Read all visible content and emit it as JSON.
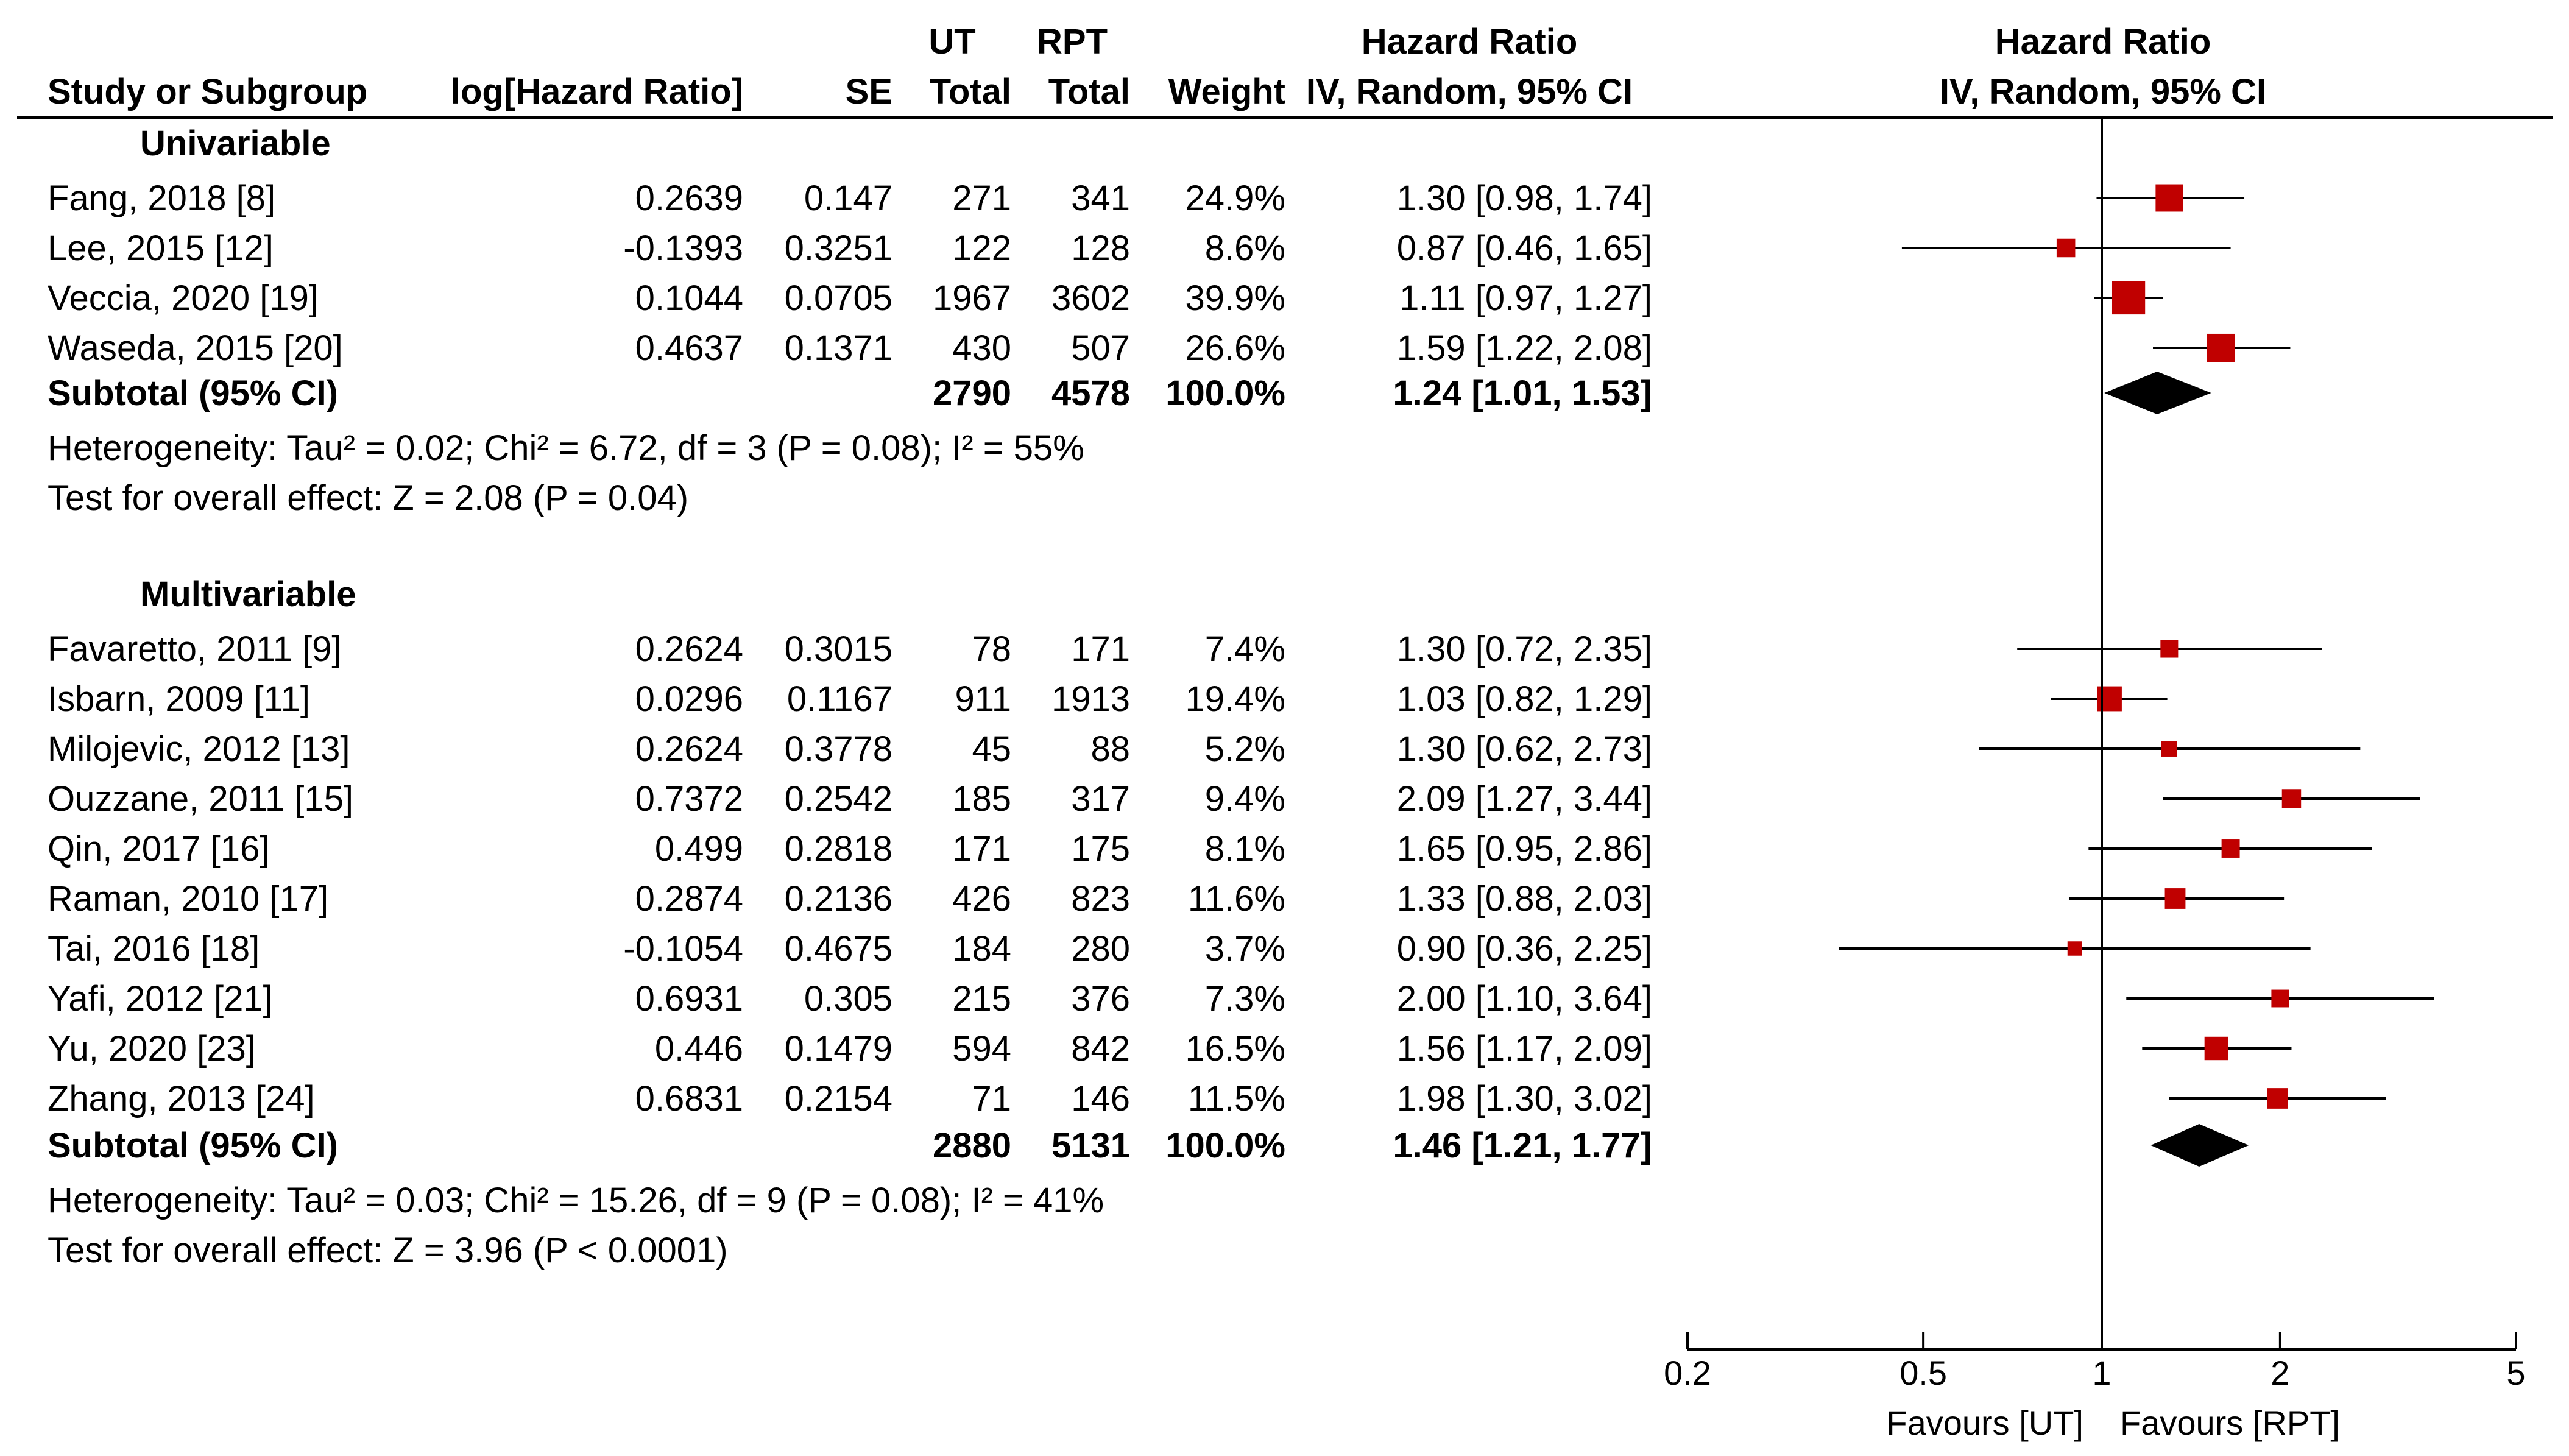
{
  "header": {
    "study": "Study or Subgroup",
    "loghr": "log[Hazard Ratio]",
    "se": "SE",
    "ut_top": "UT",
    "ut_bottom": "Total",
    "rpt_top": "RPT",
    "rpt_bottom": "Total",
    "weight": "Weight",
    "hr_top": "Hazard Ratio",
    "hr_bottom": "IV, Random, 95% CI",
    "plot_top": "Hazard Ratio",
    "plot_bottom": "IV, Random, 95% CI"
  },
  "groups": [
    {
      "label": "Univariable",
      "studies": [
        {
          "name": "Fang, 2018 [8]",
          "loghr": "0.2639",
          "se": "0.147",
          "ut": "271",
          "rpt": "341",
          "weight": "24.9%",
          "ci_text": "1.30 [0.98, 1.74]"
        },
        {
          "name": "Lee, 2015 [12]",
          "loghr": "-0.1393",
          "se": "0.3251",
          "ut": "122",
          "rpt": "128",
          "weight": "8.6%",
          "ci_text": "0.87 [0.46, 1.65]"
        },
        {
          "name": "Veccia, 2020 [19]",
          "loghr": "0.1044",
          "se": "0.0705",
          "ut": "1967",
          "rpt": "3602",
          "weight": "39.9%",
          "ci_text": "1.11 [0.97, 1.27]"
        },
        {
          "name": "Waseda, 2015 [20]",
          "loghr": "0.4637",
          "se": "0.1371",
          "ut": "430",
          "rpt": "507",
          "weight": "26.6%",
          "ci_text": "1.59 [1.22, 2.08]"
        }
      ],
      "subtotal": {
        "label": "Subtotal (95% CI)",
        "ut": "2790",
        "rpt": "4578",
        "weight": "100.0%",
        "ci_text": "1.24 [1.01, 1.53]"
      },
      "heterogeneity": "Heterogeneity: Tau² = 0.02; Chi² = 6.72, df = 3 (P = 0.08); I² = 55%",
      "overall": "Test for overall effect: Z = 2.08 (P = 0.04)"
    },
    {
      "label": "Multivariable",
      "studies": [
        {
          "name": "Favaretto, 2011 [9]",
          "loghr": "0.2624",
          "se": "0.3015",
          "ut": "78",
          "rpt": "171",
          "weight": "7.4%",
          "ci_text": "1.30 [0.72, 2.35]"
        },
        {
          "name": "Isbarn, 2009 [11]",
          "loghr": "0.0296",
          "se": "0.1167",
          "ut": "911",
          "rpt": "1913",
          "weight": "19.4%",
          "ci_text": "1.03 [0.82, 1.29]"
        },
        {
          "name": "Milojevic, 2012 [13]",
          "loghr": "0.2624",
          "se": "0.3778",
          "ut": "45",
          "rpt": "88",
          "weight": "5.2%",
          "ci_text": "1.30 [0.62, 2.73]"
        },
        {
          "name": "Ouzzane, 2011 [15]",
          "loghr": "0.7372",
          "se": "0.2542",
          "ut": "185",
          "rpt": "317",
          "weight": "9.4%",
          "ci_text": "2.09 [1.27, 3.44]"
        },
        {
          "name": "Qin, 2017 [16]",
          "loghr": "0.499",
          "se": "0.2818",
          "ut": "171",
          "rpt": "175",
          "weight": "8.1%",
          "ci_text": "1.65 [0.95, 2.86]"
        },
        {
          "name": "Raman, 2010 [17]",
          "loghr": "0.2874",
          "se": "0.2136",
          "ut": "426",
          "rpt": "823",
          "weight": "11.6%",
          "ci_text": "1.33 [0.88, 2.03]"
        },
        {
          "name": "Tai, 2016 [18]",
          "loghr": "-0.1054",
          "se": "0.4675",
          "ut": "184",
          "rpt": "280",
          "weight": "3.7%",
          "ci_text": "0.90 [0.36, 2.25]"
        },
        {
          "name": "Yafi, 2012 [21]",
          "loghr": "0.6931",
          "se": "0.305",
          "ut": "215",
          "rpt": "376",
          "weight": "7.3%",
          "ci_text": "2.00 [1.10, 3.64]"
        },
        {
          "name": "Yu, 2020 [23]",
          "loghr": "0.446",
          "se": "0.1479",
          "ut": "594",
          "rpt": "842",
          "weight": "16.5%",
          "ci_text": "1.56 [1.17, 2.09]"
        },
        {
          "name": "Zhang, 2013 [24]",
          "loghr": "0.6831",
          "se": "0.2154",
          "ut": "71",
          "rpt": "146",
          "weight": "11.5%",
          "ci_text": "1.98 [1.30, 3.02]"
        }
      ],
      "subtotal": {
        "label": "Subtotal (95% CI)",
        "ut": "2880",
        "rpt": "5131",
        "weight": "100.0%",
        "ci_text": "1.46 [1.21, 1.77]"
      },
      "heterogeneity": "Heterogeneity: Tau² = 0.03; Chi² = 15.26, df = 9 (P = 0.08); I² = 41%",
      "overall": "Test for overall effect: Z = 3.96 (P < 0.0001)"
    }
  ],
  "axis": {
    "ticks": [
      0.2,
      0.5,
      1,
      2,
      5
    ],
    "tick_labels": [
      "0.2",
      "0.5",
      "1",
      "2",
      "5"
    ],
    "favours_left": "Favours [UT]",
    "favours_right": "Favours [RPT]"
  },
  "colors": {
    "marker": "#c00000",
    "diamond": "#000000",
    "line": "#000000"
  },
  "chart_data": {
    "type": "forest",
    "xscale": "log",
    "xlim": [
      0.2,
      5
    ],
    "reference_line": 1,
    "groups": [
      {
        "name": "Univariable",
        "studies": [
          {
            "name": "Fang, 2018 [8]",
            "hr": 1.3,
            "lower": 0.98,
            "upper": 1.74,
            "weight": 24.9
          },
          {
            "name": "Lee, 2015 [12]",
            "hr": 0.87,
            "lower": 0.46,
            "upper": 1.65,
            "weight": 8.6
          },
          {
            "name": "Veccia, 2020 [19]",
            "hr": 1.11,
            "lower": 0.97,
            "upper": 1.27,
            "weight": 39.9
          },
          {
            "name": "Waseda, 2015 [20]",
            "hr": 1.59,
            "lower": 1.22,
            "upper": 2.08,
            "weight": 26.6
          }
        ],
        "subtotal": {
          "hr": 1.24,
          "lower": 1.01,
          "upper": 1.53
        }
      },
      {
        "name": "Multivariable",
        "studies": [
          {
            "name": "Favaretto, 2011 [9]",
            "hr": 1.3,
            "lower": 0.72,
            "upper": 2.35,
            "weight": 7.4
          },
          {
            "name": "Isbarn, 2009 [11]",
            "hr": 1.03,
            "lower": 0.82,
            "upper": 1.29,
            "weight": 19.4
          },
          {
            "name": "Milojevic, 2012 [13]",
            "hr": 1.3,
            "lower": 0.62,
            "upper": 2.73,
            "weight": 5.2
          },
          {
            "name": "Ouzzane, 2011 [15]",
            "hr": 2.09,
            "lower": 1.27,
            "upper": 3.44,
            "weight": 9.4
          },
          {
            "name": "Qin, 2017 [16]",
            "hr": 1.65,
            "lower": 0.95,
            "upper": 2.86,
            "weight": 8.1
          },
          {
            "name": "Raman, 2010 [17]",
            "hr": 1.33,
            "lower": 0.88,
            "upper": 2.03,
            "weight": 11.6
          },
          {
            "name": "Tai, 2016 [18]",
            "hr": 0.9,
            "lower": 0.36,
            "upper": 2.25,
            "weight": 3.7
          },
          {
            "name": "Yafi, 2012 [21]",
            "hr": 2.0,
            "lower": 1.1,
            "upper": 3.64,
            "weight": 7.3
          },
          {
            "name": "Yu, 2020 [23]",
            "hr": 1.56,
            "lower": 1.17,
            "upper": 2.09,
            "weight": 16.5
          },
          {
            "name": "Zhang, 2013 [24]",
            "hr": 1.98,
            "lower": 1.3,
            "upper": 3.02,
            "weight": 11.5
          }
        ],
        "subtotal": {
          "hr": 1.46,
          "lower": 1.21,
          "upper": 1.77
        }
      }
    ]
  }
}
